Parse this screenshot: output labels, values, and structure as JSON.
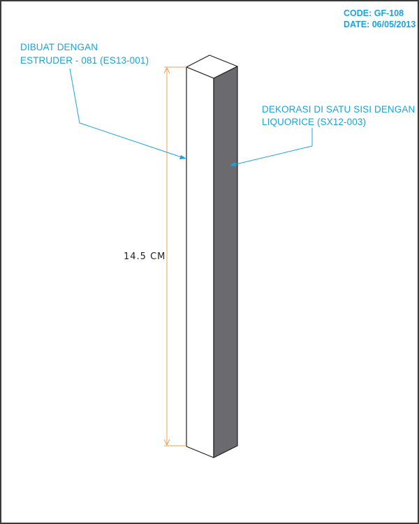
{
  "header": {
    "code": "CODE: GF-108",
    "date": "DATE: 06/05/2013"
  },
  "annotations": {
    "left_line1": "DIBUAT DENGAN",
    "left_line2": "ESTRUDER - 081 (ES13-001)",
    "right_line1": "DEKORASI  DI SATU SISI DENGAN",
    "right_line2": "LIQUORICE (SX12-003)"
  },
  "dimension": {
    "label": "14.5 CM"
  },
  "colors": {
    "annotation": "#1aa3dc",
    "dimension_line": "#f0a050",
    "front_face": "#ffffff",
    "side_face": "#6b6b6f",
    "outline": "#1e1e1e"
  }
}
